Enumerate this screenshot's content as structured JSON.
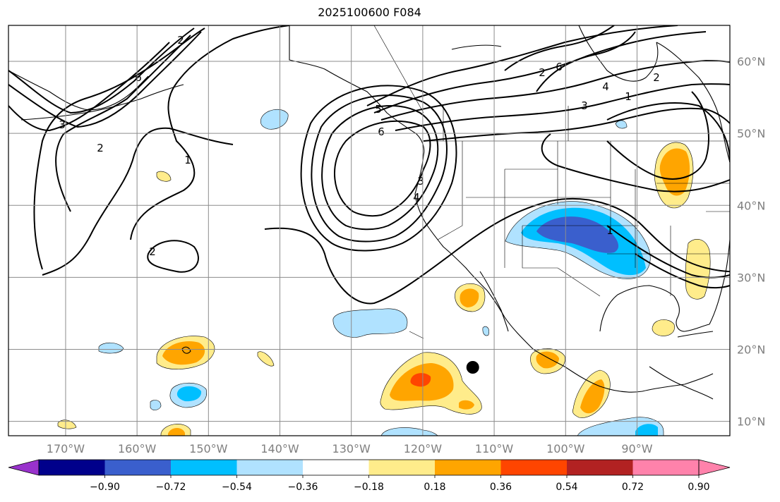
{
  "title": "2025100600 F084",
  "map": {
    "lon_range": [
      -178,
      -77
    ],
    "lat_range": [
      8,
      65
    ],
    "projection": "PlateCarree",
    "grid": true,
    "lat_ticks": [
      "60°N",
      "50°N",
      "40°N",
      "30°N",
      "20°N",
      "10°N"
    ],
    "lon_ticks": [
      "170°W",
      "160°W",
      "150°W",
      "140°W",
      "130°W",
      "120°W",
      "110°W",
      "100°W",
      "90°W"
    ],
    "contour_labels": [
      "2",
      "6",
      "3",
      "2",
      "1",
      "2",
      "6",
      "4",
      "3",
      "5",
      "2",
      "6",
      "4",
      "3",
      "1",
      "2",
      "1"
    ],
    "station_marker": {
      "lon": -113,
      "lat": 17.5
    }
  },
  "colorbar": {
    "ticks": [
      "−0.90",
      "−0.72",
      "−0.54",
      "−0.36",
      "−0.18",
      "0.18",
      "0.36",
      "0.54",
      "0.72",
      "0.90"
    ],
    "colors": [
      "#9932cc",
      "#00008b",
      "#3a5fcd",
      "#00bfff",
      "#b0e2ff",
      "#ffffff",
      "#ffec8b",
      "#ffa500",
      "#ff4500",
      "#b22222",
      "#ff82ab"
    ]
  }
}
